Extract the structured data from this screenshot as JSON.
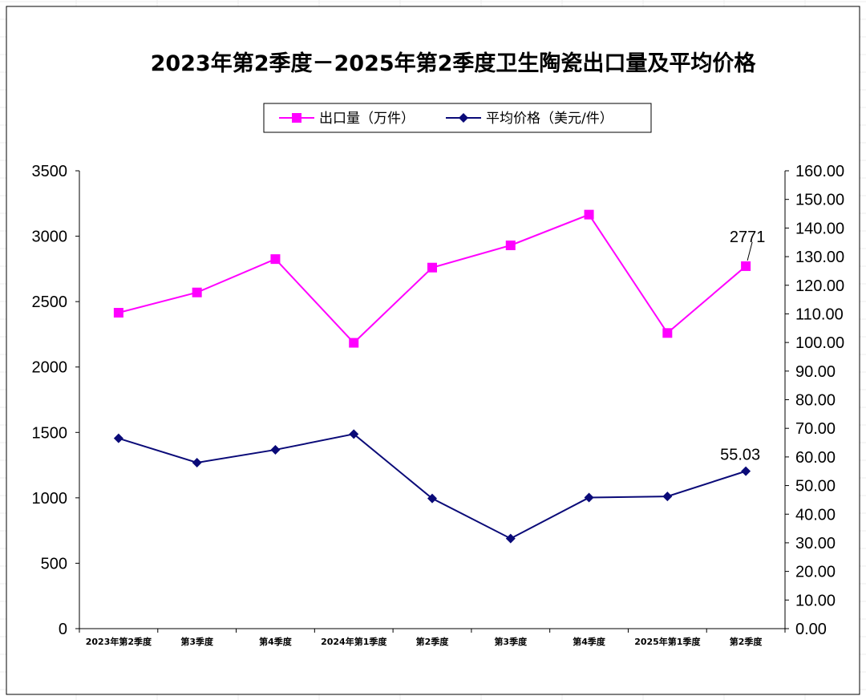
{
  "chart_data": {
    "type": "line",
    "title": "2023年第2季度－2025年第2季度卫生陶瓷出口量及平均价格",
    "categories": [
      "2023年第2季度",
      "第3季度",
      "第4季度",
      "2024年第1季度",
      "第2季度",
      "第3季度",
      "第4季度",
      "2025年第1季度",
      "第2季度"
    ],
    "series": [
      {
        "name": "出口量（万件）",
        "axis": "left",
        "color": "#ff00ff",
        "marker": "square",
        "values": [
          2415,
          2570,
          2825,
          2185,
          2760,
          2930,
          3165,
          2260,
          2771
        ]
      },
      {
        "name": "平均价格（美元/件）",
        "axis": "right",
        "color": "#0a0a78",
        "marker": "diamond",
        "values": [
          66.5,
          58.0,
          62.5,
          68.0,
          45.5,
          31.5,
          45.8,
          46.2,
          55.03
        ]
      }
    ],
    "y_left": {
      "min": 0,
      "max": 3500,
      "ticks": [
        "0",
        "500",
        "1000",
        "1500",
        "2000",
        "2500",
        "3000",
        "3500"
      ]
    },
    "y_right": {
      "min": 0,
      "max": 160,
      "ticks": [
        "0.00",
        "10.00",
        "20.00",
        "30.00",
        "40.00",
        "50.00",
        "60.00",
        "70.00",
        "80.00",
        "90.00",
        "100.00",
        "110.00",
        "120.00",
        "130.00",
        "140.00",
        "150.00",
        "160.00"
      ]
    },
    "data_labels": [
      {
        "series": 0,
        "index": 8,
        "text": "2771"
      },
      {
        "series": 1,
        "index": 8,
        "text": "55.03"
      }
    ],
    "legend_position": "top-center",
    "grid": false
  }
}
